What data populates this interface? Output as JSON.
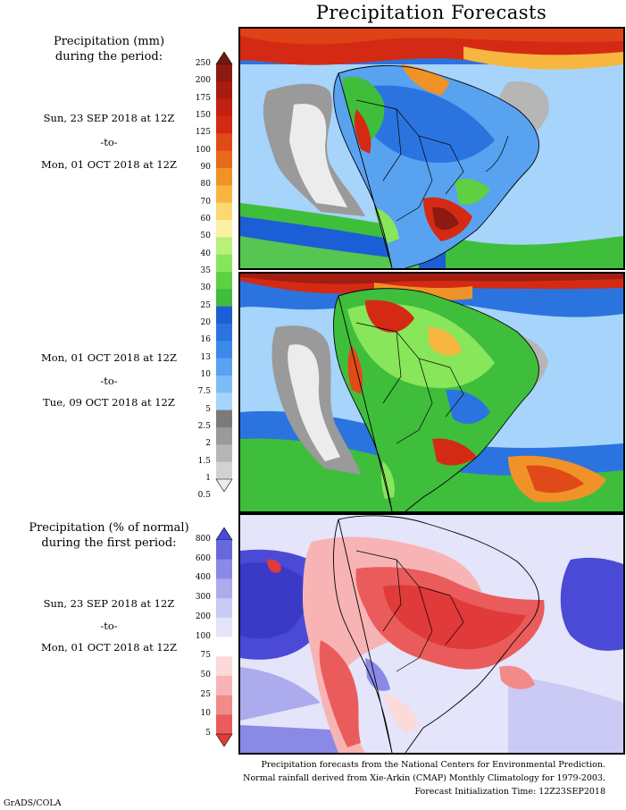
{
  "title": "Precipitation Forecasts",
  "section_amount": {
    "header_line1": "Precipitation (mm)",
    "header_line2": "during the period:",
    "period1": {
      "start": "Sun, 23 SEP 2018 at 12Z",
      "sep": "-to-",
      "end": "Mon, 01 OCT 2018 at 12Z"
    },
    "period2": {
      "start": "Mon, 01 OCT 2018 at 12Z",
      "sep": "-to-",
      "end": "Tue, 09 OCT 2018 at 12Z"
    },
    "colorbar_labels": [
      "250",
      "200",
      "175",
      "150",
      "125",
      "100",
      "90",
      "80",
      "70",
      "60",
      "50",
      "40",
      "35",
      "30",
      "25",
      "20",
      "16",
      "13",
      "10",
      "7.5",
      "5",
      "2.5",
      "2",
      "1.5",
      "1",
      "0.5"
    ],
    "colorbar_colors": [
      "#6b1a0f",
      "#8c1a10",
      "#a81c10",
      "#c22012",
      "#d42a14",
      "#e04a18",
      "#e86a1c",
      "#f09228",
      "#f6b640",
      "#fad872",
      "#fcf0a4",
      "#b8f07a",
      "#88e65a",
      "#5ed042",
      "#3fbe3c",
      "#1c5ed6",
      "#2b74e0",
      "#3b8ae8",
      "#58a2f0",
      "#7cbcf6",
      "#a6d4fa",
      "#7a7a7a",
      "#9a9a9a",
      "#b6b6b6",
      "#d2d2d2",
      "#ececec"
    ]
  },
  "section_normal": {
    "header_line1": "Precipitation (% of normal)",
    "header_line2": "during the first period:",
    "period": {
      "start": "Sun, 23 SEP 2018 at 12Z",
      "sep": "-to-",
      "end": "Mon, 01 OCT 2018 at 12Z"
    },
    "colorbar_labels": [
      "800",
      "600",
      "400",
      "300",
      "200",
      "100",
      "75",
      "50",
      "25",
      "10",
      "5"
    ],
    "colorbar_colors": [
      "#4a4ad6",
      "#6868de",
      "#8a8ae6",
      "#ababee",
      "#cacaf4",
      "#e4e4fa",
      "#ffffff",
      "#fcdada",
      "#f8b4b4",
      "#f28a8a",
      "#ea5c5c",
      "#e03a3a"
    ]
  },
  "footer": {
    "line1": "Precipitation forecasts from the National Centers for Environmental Prediction.",
    "line2": "Normal rainfall derived from Xie-Arkin (CMAP) Monthly Climatology for 1979-2003.",
    "line3": "Forecast Initialization Time: 12Z23SEP2018"
  },
  "credit": "GrADS/COLA"
}
